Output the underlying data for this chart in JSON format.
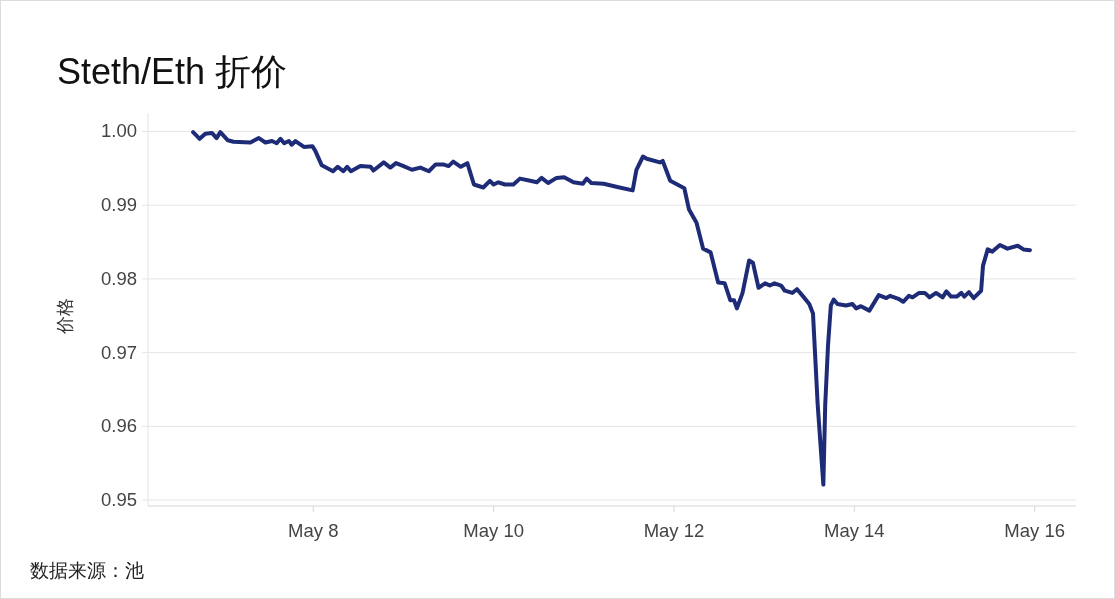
{
  "chart_data": {
    "type": "line",
    "title": "Steth/Eth 折价",
    "ylabel": "价格",
    "annotations": [
      "数据来源：池"
    ],
    "x": [
      "--05-06T16:00",
      "--05-06T17:45",
      "--05-06T19:15",
      "--05-06T21:00",
      "--05-06T22:15",
      "--05-06T23:15",
      "--05-07T01:15",
      "--05-07T02:45",
      "--05-07T07:15",
      "--05-07T09:30",
      "--05-07T11:15",
      "--05-07T13:00",
      "--05-07T14:15",
      "--05-07T15:15",
      "--05-07T16:15",
      "--05-07T17:30",
      "--05-07T18:15",
      "--05-07T19:15",
      "--05-07T21:30",
      "--05-07T23:45",
      "--05-08T00:30",
      "--05-08T02:15",
      "--05-08T05:15",
      "--05-08T06:30",
      "--05-08T08:00",
      "--05-08T09:00",
      "--05-08T10:00",
      "--05-08T12:30",
      "--05-08T15:15",
      "--05-08T16:00",
      "--05-08T18:45",
      "--05-08T20:30",
      "--05-08T22:00",
      "--05-09T00:00",
      "--05-09T02:15",
      "--05-09T04:30",
      "--05-09T06:45",
      "--05-09T08:30",
      "--05-09T10:45",
      "--05-09T12:00",
      "--05-09T13:15",
      "--05-09T15:15",
      "--05-09T17:00",
      "--05-09T18:45",
      "--05-09T21:15",
      "--05-09T23:00",
      "--05-10T00:00",
      "--05-10T01:15",
      "--05-10T03:00",
      "--05-10T05:15",
      "--05-10T07:00",
      "--05-10T09:45",
      "--05-10T11:30",
      "--05-10T12:45",
      "--05-10T14:30",
      "--05-10T16:45",
      "--05-10T18:45",
      "--05-10T21:15",
      "--05-10T23:45",
      "--05-11T00:45",
      "--05-11T02:00",
      "--05-11T05:15",
      "--05-11T09:30",
      "--05-11T13:00",
      "--05-11T14:00",
      "--05-11T15:45",
      "--05-11T16:45",
      "--05-11T20:15",
      "--05-11T21:00",
      "--05-11T23:00",
      "--05-12T00:30",
      "--05-12T02:45",
      "--05-12T04:00",
      "--05-12T06:00",
      "--05-12T07:45",
      "--05-12T09:45",
      "--05-12T11:45",
      "--05-12T13:30",
      "--05-12T15:00",
      "--05-12T16:00",
      "--05-12T16:45",
      "--05-12T18:15",
      "--05-12T20:00",
      "--05-12T21:00",
      "--05-12T22:30",
      "--05-13T00:15",
      "--05-13T01:30",
      "--05-13T02:45",
      "--05-13T04:30",
      "--05-13T05:30",
      "--05-13T07:30",
      "--05-13T08:45",
      "--05-13T10:15",
      "--05-13T12:00",
      "--05-13T13:00",
      "--05-13T14:15",
      "--05-13T15:45",
      "--05-13T16:15",
      "--05-13T17:00",
      "--05-13T17:45",
      "--05-13T18:30",
      "--05-13T19:30",
      "--05-13T21:45",
      "--05-13T23:30",
      "--05-14T00:30",
      "--05-14T01:45",
      "--05-14T04:00",
      "--05-14T06:30",
      "--05-14T08:30",
      "--05-14T09:30",
      "--05-14T11:45",
      "--05-14T13:00",
      "--05-14T14:30",
      "--05-14T15:30",
      "--05-14T17:15",
      "--05-14T18:45",
      "--05-14T20:00",
      "--05-14T21:45",
      "--05-14T23:30",
      "--05-15T00:30",
      "--05-15T01:45",
      "--05-15T03:15",
      "--05-15T04:30",
      "--05-15T05:15",
      "--05-15T06:30",
      "--05-15T07:45",
      "--05-15T09:45",
      "--05-15T10:15",
      "--05-15T11:30",
      "--05-15T12:45",
      "--05-15T14:45",
      "--05-15T16:45",
      "--05-15T19:30",
      "--05-15T21:00",
      "--05-15T22:45"
    ],
    "series": [
      {
        "color": "#1e2c78",
        "values": [
          0.9999,
          0.999,
          0.9997,
          0.9998,
          0.9991,
          0.9999,
          0.9988,
          0.9986,
          0.9985,
          0.9991,
          0.9985,
          0.9987,
          0.9984,
          0.999,
          0.9984,
          0.9987,
          0.9982,
          0.9987,
          0.9979,
          0.998,
          0.9974,
          0.9954,
          0.9946,
          0.9952,
          0.9946,
          0.9952,
          0.9946,
          0.9953,
          0.9952,
          0.9947,
          0.9958,
          0.9951,
          0.9957,
          0.9953,
          0.9948,
          0.9951,
          0.9946,
          0.9955,
          0.9955,
          0.9953,
          0.9959,
          0.9952,
          0.9957,
          0.9928,
          0.9924,
          0.9933,
          0.9928,
          0.9931,
          0.9928,
          0.9928,
          0.9936,
          0.9933,
          0.9931,
          0.9937,
          0.993,
          0.9937,
          0.9938,
          0.9931,
          0.9929,
          0.9936,
          0.993,
          0.9929,
          0.9924,
          0.992,
          0.9948,
          0.9966,
          0.9963,
          0.9958,
          0.996,
          0.9933,
          0.9929,
          0.9923,
          0.9894,
          0.9876,
          0.9841,
          0.9836,
          0.9795,
          0.9794,
          0.9771,
          0.9771,
          0.976,
          0.9781,
          0.9825,
          0.9822,
          0.9788,
          0.9794,
          0.9791,
          0.9794,
          0.9791,
          0.9784,
          0.9781,
          0.9786,
          0.9777,
          0.9766,
          0.9753,
          0.9629,
          0.9521,
          0.9629,
          0.971,
          0.9764,
          0.9772,
          0.9766,
          0.9764,
          0.9766,
          0.976,
          0.9763,
          0.9757,
          0.9778,
          0.9774,
          0.9777,
          0.9773,
          0.9769,
          0.9777,
          0.9775,
          0.9781,
          0.9781,
          0.9775,
          0.9781,
          0.9775,
          0.9783,
          0.9776,
          0.9776,
          0.9781,
          0.9776,
          0.9782,
          0.9774,
          0.9784,
          0.9818,
          0.984,
          0.9837,
          0.9846,
          0.9841,
          0.9845,
          0.984,
          0.9839
        ]
      }
    ],
    "xlim": [
      "--05-06T04:00",
      "--05-16T11:00"
    ],
    "xticks": [
      {
        "value": "--05-08",
        "label": "May 8"
      },
      {
        "value": "--05-10",
        "label": "May 10"
      },
      {
        "value": "--05-12",
        "label": "May 12"
      },
      {
        "value": "--05-14",
        "label": "May 14"
      },
      {
        "value": "--05-16",
        "label": "May 16"
      }
    ],
    "ylim": [
      0.9492,
      1.0025
    ],
    "yticks": [
      0.95,
      0.96,
      0.97,
      0.98,
      0.99,
      {
        "value": 1,
        "label": "1.00"
      }
    ],
    "grid": "y",
    "line_style": "solid",
    "marker": "none"
  }
}
